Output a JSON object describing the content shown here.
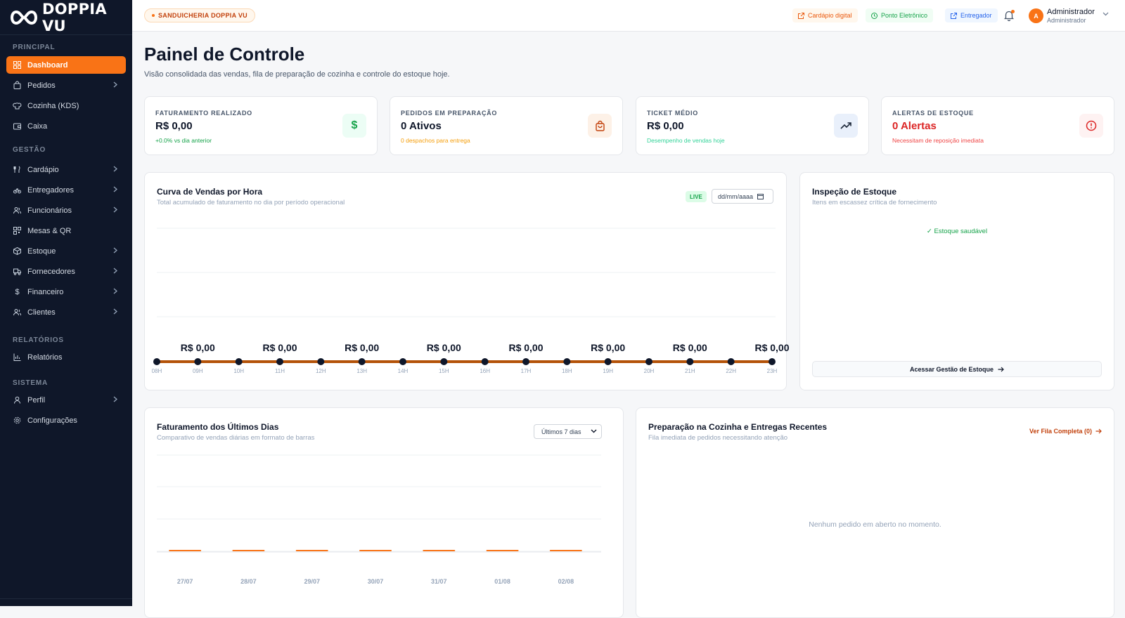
{
  "brand": {
    "name": "DOPPIA VU"
  },
  "sidebar": {
    "sections": [
      {
        "label": "PRINCIPAL"
      },
      {
        "label": "GESTÃO"
      },
      {
        "label": "RELATÓRIOS"
      },
      {
        "label": "SISTEMA"
      }
    ],
    "items": [
      {
        "label": "Dashboard",
        "icon": "grid-icon",
        "active": true
      },
      {
        "label": "Pedidos",
        "icon": "bag-icon",
        "chevron": true
      },
      {
        "label": "Cozinha (KDS)",
        "icon": "chef-hat-icon"
      },
      {
        "label": "Caixa",
        "icon": "wallet-icon"
      },
      {
        "label": "Cardápio",
        "icon": "utensils-icon",
        "chevron": true
      },
      {
        "label": "Entregadores",
        "icon": "bike-icon",
        "chevron": true
      },
      {
        "label": "Funcionários",
        "icon": "users-icon",
        "chevron": true
      },
      {
        "label": "Mesas & QR",
        "icon": "qr-icon"
      },
      {
        "label": "Estoque",
        "icon": "package-icon",
        "chevron": true
      },
      {
        "label": "Fornecedores",
        "icon": "truck-icon",
        "chevron": true
      },
      {
        "label": "Financeiro",
        "icon": "dollar-icon",
        "chevron": true
      },
      {
        "label": "Clientes",
        "icon": "user-group-icon",
        "chevron": true
      },
      {
        "label": "Relatórios",
        "icon": "bar-chart-icon"
      },
      {
        "label": "Perfil",
        "icon": "user-icon",
        "chevron": true
      },
      {
        "label": "Configurações",
        "icon": "settings-icon"
      }
    ]
  },
  "topbar": {
    "store": "SANDUICHERIA DOPPIA VU",
    "buttons": [
      {
        "label": "Cardápio digital",
        "icon": "external-link-icon"
      },
      {
        "label": "Ponto Eletrônico",
        "icon": "clock-icon"
      },
      {
        "label": "Entregador",
        "icon": "external-link-icon"
      }
    ],
    "user": {
      "initial": "A",
      "name": "Administrador",
      "role": "Administrador"
    }
  },
  "page": {
    "title": "Painel de Controle",
    "subtitle": "Visão consolidada das vendas, fila de preparação de cozinha e controle do estoque hoje."
  },
  "stats": [
    {
      "label": "FATURAMENTO REALIZADO",
      "value": "R$ 0,00",
      "sub": "+0.0% vs dia anterior",
      "color": "#16a34a",
      "icon": "dollar-icon"
    },
    {
      "label": "PEDIDOS EM PREPARAÇÃO",
      "value": "0 Ativos",
      "sub": "0 despachos para entrega",
      "color": "#f59e0b",
      "icon": "shopping-bag-icon"
    },
    {
      "label": "TICKET MÉDIO",
      "value": "R$ 0,00",
      "sub": "Desempenho de vendas hoje",
      "color": "#34d399",
      "icon": "trending-up-icon"
    },
    {
      "label": "ALERTAS DE ESTOQUE",
      "value": "0 Alertas",
      "sub": "Necessitam de reposição imediata",
      "color": "#dc2626",
      "icon": "alert-circle-icon"
    }
  ],
  "hourly_panel": {
    "title": "Curva de Vendas por Hora",
    "subtitle": "Total acumulado de faturamento no dia por período operacional",
    "live": "LIVE",
    "date_placeholder": "dd/mm/aaaa"
  },
  "stock_panel": {
    "title": "Inspeção de Estoque",
    "subtitle": "Itens em escassez crítica de fornecimento",
    "status": "✓ Estoque saudável",
    "button": "Acessar Gestão de Estoque"
  },
  "daily_panel": {
    "title": "Faturamento dos Últimos Dias",
    "subtitle": "Comparativo de vendas diárias em formato de barras",
    "select": "Últimos 7 dias"
  },
  "orders_panel": {
    "title": "Preparação na Cozinha e Entregas Recentes",
    "subtitle": "Fila imediata de pedidos necessitando atenção",
    "link": "Ver Fila Completa (0)",
    "empty": "Nenhum pedido em aberto no momento."
  },
  "chart_data": [
    {
      "type": "line",
      "x": [
        "08H",
        "09H",
        "10H",
        "11H",
        "12H",
        "13H",
        "14H",
        "15H",
        "16H",
        "17H",
        "18H",
        "19H",
        "20H",
        "21H",
        "22H",
        "23H"
      ],
      "series": [
        {
          "values": [
            0,
            0,
            0,
            0,
            0,
            0,
            0,
            0,
            0,
            0,
            0,
            0,
            0,
            0,
            0,
            0
          ],
          "color": "#b45309"
        }
      ],
      "data_labels": [
        "R$ 0,00",
        "R$ 0,00",
        "R$ 0,00",
        "R$ 0,00",
        "R$ 0,00",
        "R$ 0,00",
        "R$ 0,00",
        "R$ 0,00"
      ],
      "grid": true
    },
    {
      "type": "bar",
      "categories": [
        "27/07",
        "28/07",
        "29/07",
        "30/07",
        "31/07",
        "01/08",
        "02/08"
      ],
      "values": [
        0,
        0,
        0,
        0,
        0,
        0,
        0
      ],
      "color": "#f97316",
      "grid": true
    }
  ]
}
